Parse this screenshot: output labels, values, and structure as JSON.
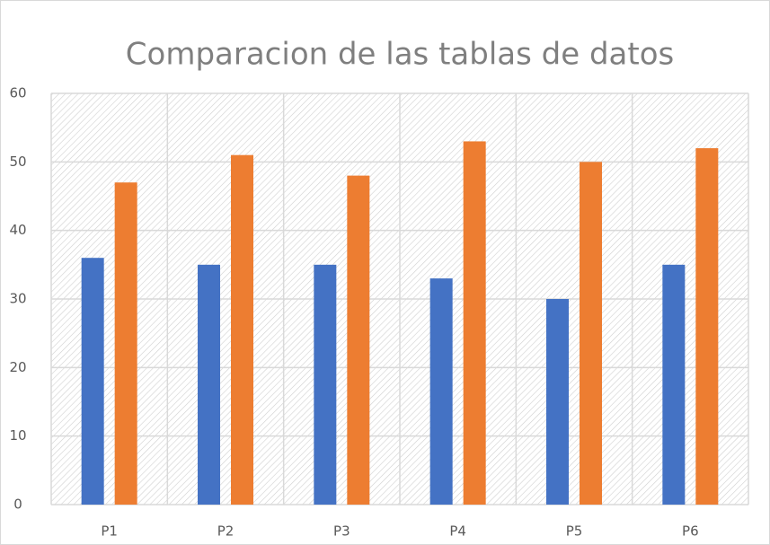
{
  "chart_data": {
    "type": "bar",
    "title": "Comparacion de las tablas de datos",
    "categories": [
      "P1",
      "P2",
      "P3",
      "P4",
      "P5",
      "P6"
    ],
    "series": [
      {
        "color": "#4472c4",
        "values": [
          36,
          35,
          35,
          33,
          30,
          35
        ]
      },
      {
        "color": "#ed7d31",
        "values": [
          47,
          51,
          48,
          53,
          50,
          52
        ]
      }
    ],
    "ylim": [
      0,
      60
    ],
    "yticks": [
      0,
      10,
      20,
      30,
      40,
      50,
      60
    ],
    "grid": true
  }
}
